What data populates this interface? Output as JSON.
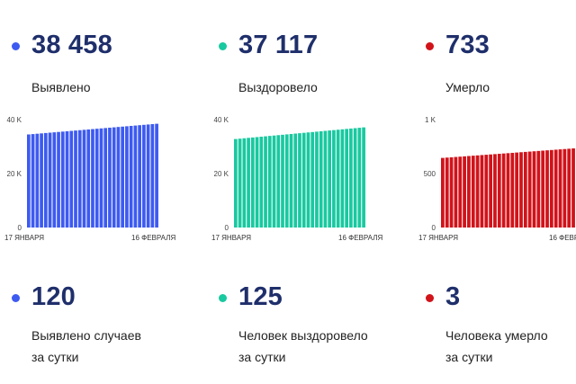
{
  "top": [
    {
      "value": "38 458",
      "label": "Выявлено",
      "color": "#3d5af1"
    },
    {
      "value": "37 117",
      "label": "Выздоровело",
      "color": "#19c9a0"
    },
    {
      "value": "733",
      "label": "Умерло",
      "color": "#d1131a"
    }
  ],
  "bottom": [
    {
      "value": "120",
      "label_line1": "Выявлено случаев",
      "label_line2": "за сутки",
      "color": "#3d5af1"
    },
    {
      "value": "125",
      "label_line1": "Человек выздоровело",
      "label_line2": "за сутки",
      "color": "#19c9a0"
    },
    {
      "value": "3",
      "label_line1": "Человека умерло",
      "label_line2": "за сутки",
      "color": "#d1131a"
    }
  ],
  "chart_data": [
    {
      "type": "bar",
      "color": "#3d5af1",
      "y_ticks": [
        "0",
        "20 K",
        "40 K"
      ],
      "y_tick_values": [
        0,
        20000,
        40000
      ],
      "ylim": [
        0,
        40000
      ],
      "x_labels": [
        "17 ЯНВАРЯ",
        "16 ФЕВРАЛЯ"
      ],
      "start": 34500,
      "end": 38458,
      "count": 31
    },
    {
      "type": "bar",
      "color": "#19c9a0",
      "y_ticks": [
        "0",
        "20 K",
        "40 K"
      ],
      "y_tick_values": [
        0,
        20000,
        40000
      ],
      "ylim": [
        0,
        40000
      ],
      "x_labels": [
        "17 ЯНВАРЯ",
        "16 ФЕВРАЛЯ"
      ],
      "start": 32800,
      "end": 37117,
      "count": 31
    },
    {
      "type": "bar",
      "color": "#d1131a",
      "y_ticks": [
        "0",
        "500",
        "1 K"
      ],
      "y_tick_values": [
        0,
        500,
        1000
      ],
      "ylim": [
        0,
        1000
      ],
      "x_labels": [
        "17 ЯНВАРЯ",
        "16 ФЕВР"
      ],
      "start": 645,
      "end": 733,
      "count": 31
    }
  ]
}
